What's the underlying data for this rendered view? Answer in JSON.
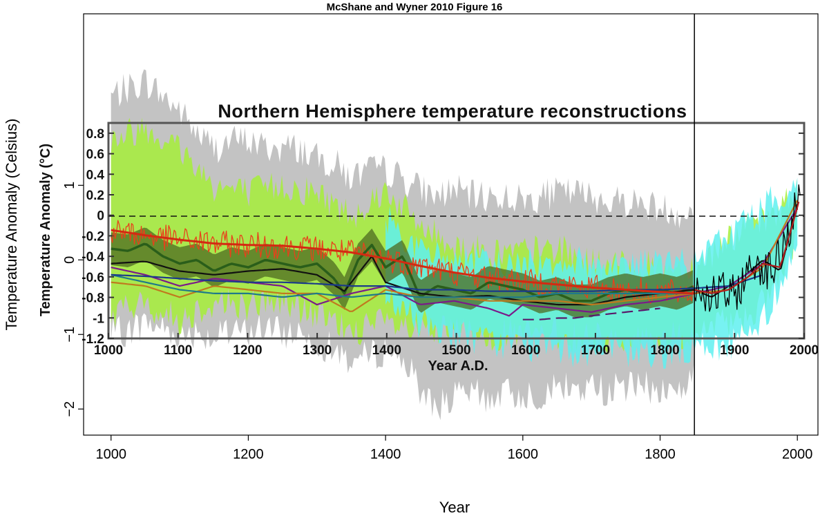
{
  "chart_data": [
    {
      "type": "line",
      "title": "McShane and Wyner 2010 Figure 16",
      "xlabel": "Year",
      "ylabel": "Temperature Anomaly (Celsius)",
      "xlim": [
        960,
        2030
      ],
      "ylim": [
        -2.35,
        3.3
      ],
      "x_ticks": [
        1000,
        1200,
        1400,
        1600,
        1800,
        2000
      ],
      "y_ticks": [
        -2,
        -1,
        0,
        1
      ],
      "reference_line_year": 1850,
      "grid": false,
      "series": [
        {
          "color": "#bdbdbd",
          "x": [
            1000,
            1025,
            1050,
            1075,
            1100,
            1125,
            1150,
            1175,
            1200,
            1225,
            1250,
            1275,
            1300,
            1325,
            1350,
            1375,
            1400,
            1425,
            1450,
            1475,
            1500,
            1525,
            1550,
            1575,
            1600,
            1625,
            1650,
            1675,
            1700,
            1725,
            1750,
            1775,
            1800,
            1825,
            1850
          ],
          "y": [
            0.6,
            0.75,
            0.9,
            0.75,
            0.55,
            0.4,
            0.2,
            0.3,
            0.35,
            0.3,
            0.25,
            0.3,
            0.15,
            0.1,
            -0.1,
            0.1,
            0.05,
            0.0,
            -0.25,
            -0.4,
            -0.35,
            -0.4,
            -0.45,
            -0.4,
            -0.45,
            -0.4,
            -0.3,
            -0.3,
            -0.35,
            -0.4,
            -0.35,
            -0.4,
            -0.45,
            -0.5,
            -0.45
          ],
          "band_upper": [
            2.2,
            2.3,
            2.4,
            2.2,
            2.0,
            1.7,
            1.5,
            1.6,
            1.6,
            1.5,
            1.5,
            1.5,
            1.35,
            1.3,
            1.1,
            1.2,
            1.2,
            1.1,
            0.95,
            0.85,
            0.95,
            0.85,
            0.85,
            0.85,
            0.8,
            0.85,
            0.9,
            0.9,
            0.85,
            0.8,
            0.8,
            0.75,
            0.7,
            0.65,
            0.6
          ],
          "band_lower": [
            -1.0,
            -0.95,
            -0.85,
            -0.9,
            -1.0,
            -0.95,
            -1.05,
            -1.0,
            -0.95,
            -0.9,
            -1.0,
            -0.95,
            -1.1,
            -1.2,
            -1.35,
            -1.3,
            -1.2,
            -1.3,
            -1.75,
            -1.95,
            -1.85,
            -1.8,
            -1.85,
            -1.8,
            -1.8,
            -1.8,
            -1.7,
            -1.75,
            -1.7,
            -1.75,
            -1.7,
            -1.7,
            -1.75,
            -1.75,
            -1.6
          ]
        },
        {
          "color": "#a6ee3a",
          "x": [
            1000,
            1050,
            1100,
            1150,
            1200,
            1250,
            1300,
            1350,
            1400,
            1450,
            1500,
            1550,
            1600,
            1650,
            1700,
            1750,
            1800,
            1850,
            1900,
            1950,
            2000
          ],
          "y": [
            0.2,
            0.3,
            0.2,
            0.15,
            0.1,
            0.15,
            0.05,
            -0.2,
            0.05,
            -0.35,
            -0.45,
            -0.5,
            -0.5,
            -0.4,
            -0.55,
            -0.5,
            -0.5,
            -0.45,
            -0.35,
            -0.15,
            0.6
          ],
          "band_upper": [
            1.6,
            1.8,
            1.5,
            1.0,
            0.9,
            1.0,
            0.9,
            0.6,
            0.95,
            0.45,
            0.2,
            0.1,
            0.1,
            0.15,
            -0.05,
            -0.1,
            -0.1,
            -0.1,
            0.3,
            0.5,
            0.9
          ],
          "band_lower": [
            -0.7,
            -0.6,
            -0.8,
            -0.55,
            -0.6,
            -0.55,
            -0.75,
            -0.95,
            -0.85,
            -1.0,
            -0.95,
            -1.0,
            -1.0,
            -1.0,
            -1.05,
            -1.05,
            -1.05,
            -1.0,
            -0.85,
            -0.6,
            0.2
          ]
        },
        {
          "color": "#5ff0f0",
          "x": [
            1400,
            1450,
            1500,
            1550,
            1600,
            1650,
            1700,
            1750,
            1800,
            1850,
            1900,
            1950,
            2000
          ],
          "y": [
            0.0,
            -0.35,
            -0.45,
            -0.5,
            -0.55,
            -0.5,
            -0.55,
            -0.5,
            -0.5,
            -0.45,
            -0.35,
            -0.1,
            0.65
          ],
          "band_upper": [
            0.6,
            0.1,
            0.0,
            -0.05,
            -0.05,
            0.0,
            -0.05,
            -0.05,
            -0.05,
            -0.05,
            0.35,
            0.7,
            1.0
          ],
          "band_lower": [
            -0.5,
            -0.85,
            -1.0,
            -1.1,
            -1.15,
            -1.2,
            -1.25,
            -1.25,
            -1.25,
            -1.2,
            -1.15,
            -0.8,
            0.2
          ]
        },
        {
          "color": "#e8411b",
          "x": [
            1000,
            1050,
            1100,
            1150,
            1200,
            1250,
            1300,
            1350,
            1400,
            1450,
            1500,
            1550,
            1600,
            1650,
            1700,
            1750,
            1800,
            1850
          ],
          "y": [
            0.4,
            0.33,
            0.27,
            0.22,
            0.2,
            0.19,
            0.15,
            0.1,
            0.02,
            -0.08,
            -0.17,
            -0.24,
            -0.29,
            -0.33,
            -0.37,
            -0.4,
            -0.43,
            -0.45
          ]
        },
        {
          "color": "#2a5e1a",
          "x": [
            1000,
            1025,
            1050,
            1075,
            1100,
            1125,
            1150,
            1175,
            1200,
            1225,
            1250,
            1275,
            1300,
            1325,
            1340,
            1360,
            1380,
            1400,
            1425,
            1450,
            1475,
            1500,
            1525,
            1550,
            1575,
            1600,
            1625,
            1650,
            1675,
            1700,
            1725,
            1750,
            1775,
            1800,
            1825,
            1850
          ],
          "y": [
            0.15,
            0.12,
            0.22,
            0.05,
            -0.05,
            0.0,
            -0.15,
            -0.05,
            -0.1,
            0.0,
            -0.05,
            -0.1,
            -0.05,
            -0.25,
            -0.45,
            0.0,
            0.2,
            -0.1,
            0.05,
            -0.5,
            -0.35,
            -0.4,
            -0.45,
            -0.3,
            -0.35,
            -0.4,
            -0.5,
            -0.45,
            -0.55,
            -0.55,
            -0.45,
            -0.4,
            -0.45,
            -0.4,
            -0.45,
            -0.35
          ]
        },
        {
          "color": "#111111",
          "x": [
            1000,
            1050,
            1100,
            1150,
            1200,
            1250,
            1300,
            1340,
            1380,
            1400,
            1450,
            1500,
            1550,
            1600,
            1650,
            1700,
            1750,
            1800,
            1850,
            1875,
            1900,
            1925,
            1950,
            1975,
            2000
          ],
          "y": [
            -0.05,
            -0.02,
            -0.15,
            -0.2,
            -0.15,
            -0.12,
            -0.2,
            -0.42,
            0.05,
            -0.3,
            -0.45,
            -0.5,
            -0.48,
            -0.55,
            -0.6,
            -0.6,
            -0.5,
            -0.45,
            -0.4,
            -0.5,
            -0.35,
            -0.2,
            0.0,
            -0.15,
            0.75
          ]
        },
        {
          "color": "#7b1a8a",
          "x": [
            1000,
            1050,
            1100,
            1150,
            1200,
            1250,
            1300,
            1350,
            1400,
            1450,
            1500,
            1550,
            1580,
            1600,
            1650,
            1700,
            1750,
            1800,
            1850,
            1900,
            1950,
            2000
          ],
          "y": [
            -0.1,
            -0.2,
            -0.35,
            -0.25,
            -0.3,
            -0.35,
            -0.6,
            -0.45,
            -0.35,
            -0.6,
            -0.55,
            -0.65,
            -0.75,
            -0.6,
            -0.65,
            -0.7,
            -0.6,
            -0.55,
            -0.45,
            -0.35,
            -0.05,
            0.7
          ]
        },
        {
          "color": "#c07a1e",
          "x": [
            1000,
            1050,
            1100,
            1150,
            1200,
            1250,
            1300,
            1350,
            1400,
            1450,
            1500,
            1550,
            1600,
            1650,
            1700,
            1750,
            1800,
            1850,
            1900,
            1950,
            2000
          ],
          "y": [
            -0.3,
            -0.35,
            -0.5,
            -0.35,
            -0.4,
            -0.45,
            -0.45,
            -0.7,
            -0.4,
            -0.5,
            -0.5,
            -0.55,
            -0.55,
            -0.55,
            -0.6,
            -0.55,
            -0.5,
            -0.45,
            -0.4,
            -0.1,
            0.8
          ]
        },
        {
          "color": "#1e7a8a",
          "x": [
            1000,
            1050,
            1100,
            1150,
            1200,
            1250,
            1300,
            1350,
            1400,
            1450,
            1500,
            1550,
            1600,
            1650,
            1700,
            1750,
            1800,
            1850
          ],
          "y": [
            -0.2,
            -0.3,
            -0.4,
            -0.45,
            -0.45,
            -0.5,
            -0.45,
            -0.5,
            -0.45,
            -0.5,
            -0.5,
            -0.5,
            -0.5,
            -0.45,
            -0.45,
            -0.45,
            -0.45,
            -0.45
          ]
        },
        {
          "color": "#1a3a8a",
          "x": [
            1000,
            1050,
            1100,
            1150,
            1200,
            1250,
            1300,
            1350,
            1400,
            1450,
            1500,
            1550,
            1600,
            1650,
            1700,
            1750,
            1800,
            1850,
            1900,
            1950
          ],
          "y": [
            -0.2,
            -0.22,
            -0.25,
            -0.28,
            -0.3,
            -0.3,
            -0.32,
            -0.35,
            -0.35,
            -0.4,
            -0.4,
            -0.42,
            -0.42,
            -0.42,
            -0.42,
            -0.4,
            -0.4,
            -0.38,
            -0.35,
            -0.2
          ]
        },
        {
          "color": "#5a1a6a",
          "x": [
            1600,
            1625,
            1650,
            1675,
            1700,
            1750,
            1800
          ],
          "y": [
            -0.8,
            -0.8,
            -0.78,
            -0.78,
            -0.75,
            -0.7,
            -0.65
          ]
        },
        {
          "color": "#000000",
          "x": [
            1850,
            1860,
            1870,
            1880,
            1890,
            1900,
            1910,
            1920,
            1930,
            1940,
            1950,
            1960,
            1970,
            1980,
            1990,
            2000,
            2005
          ],
          "y": [
            -0.35,
            -0.4,
            -0.45,
            -0.5,
            -0.4,
            -0.5,
            -0.45,
            -0.3,
            -0.15,
            0.0,
            -0.1,
            -0.15,
            -0.05,
            0.2,
            0.45,
            0.75,
            0.9
          ]
        },
        {
          "color": "#b01e1e",
          "x": [
            1850,
            1875,
            1900,
            1925,
            1950,
            1975,
            2000,
            2005
          ],
          "y": [
            -0.4,
            -0.45,
            -0.4,
            -0.25,
            -0.05,
            -0.1,
            0.7,
            0.9
          ]
        }
      ]
    },
    {
      "type": "line",
      "title": "Northern Hemisphere temperature reconstructions",
      "xlabel": "Year A.D.",
      "ylabel": "Temperature Anomaly (°C)",
      "xlim": [
        1000,
        2000
      ],
      "ylim": [
        -1.2,
        0.9
      ],
      "x_ticks": [
        "1000",
        "1100",
        "1200",
        "1300",
        "1400",
        "1500",
        "1600",
        "1700",
        "1800",
        "1900",
        "2000"
      ],
      "y_ticks": [
        "0.8",
        "0.6",
        "0.4",
        "0.2",
        "0",
        "-0.2",
        "-0.4",
        "-0.6",
        "-0.8",
        "-1",
        "-1.2"
      ],
      "zero_line": 0,
      "grid": false
    }
  ]
}
